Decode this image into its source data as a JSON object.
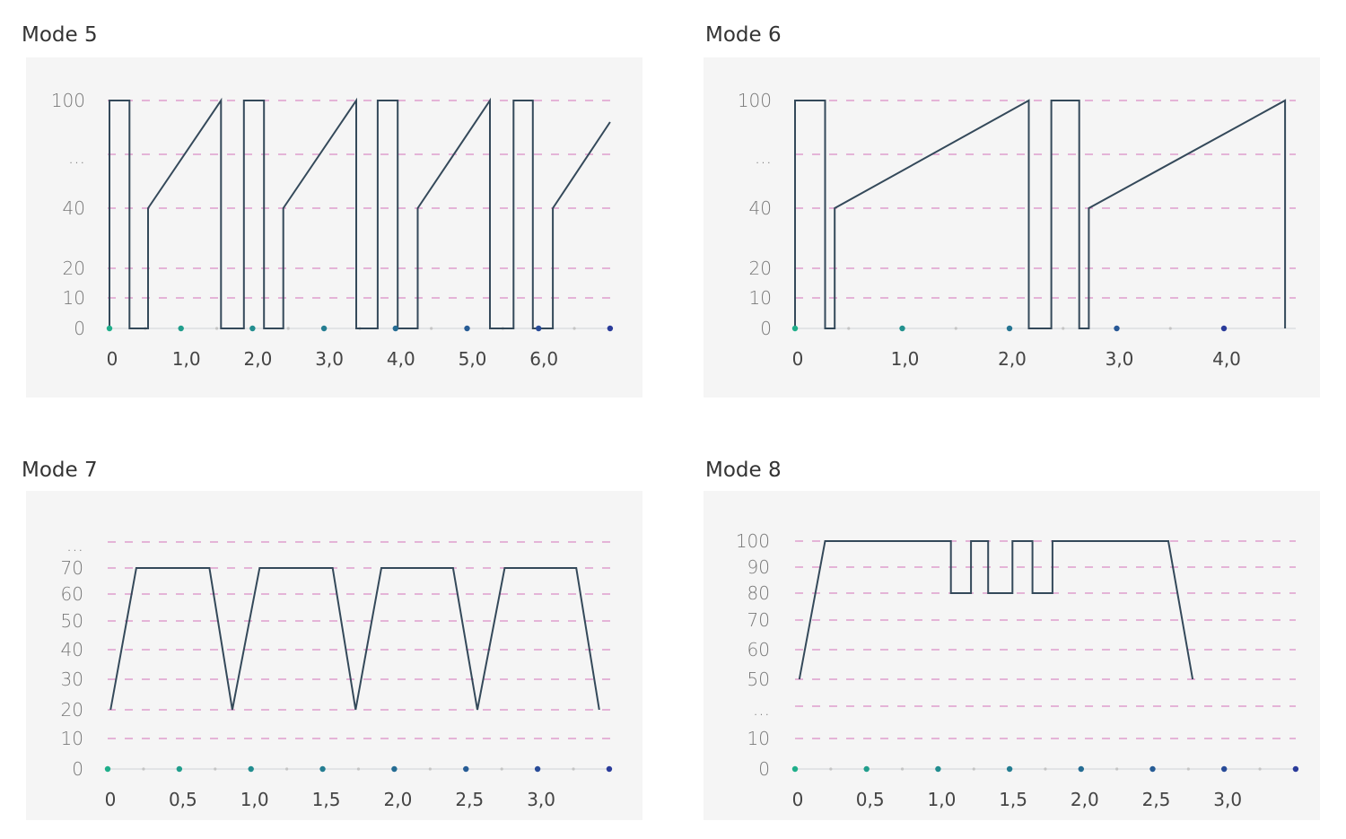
{
  "colors": {
    "panel": "#f5f5f5",
    "line": "#34495a",
    "grid": "#d67bbd",
    "axis": "#cfd3d8",
    "dot_start": "#1fae8a",
    "dot_end": "#2a3b9a",
    "minor_dot": "#c4c4c4"
  },
  "chart_data": [
    {
      "type": "line",
      "title": "Mode 5",
      "y_ticks": [
        "100",
        "...",
        "40",
        "20",
        "10",
        "0"
      ],
      "y_tick_values": [
        100,
        null,
        40,
        20,
        10,
        0
      ],
      "x_ticks": [
        "0",
        "1,0",
        "2,0",
        "3,0",
        "4,0",
        "5,0",
        "6,0"
      ],
      "x_tick_values": [
        0,
        1,
        2,
        3,
        4,
        5,
        6
      ],
      "x_axis_markers": [
        0,
        1,
        2,
        3,
        4,
        5,
        6,
        7
      ],
      "grid": true,
      "x": [
        0,
        0,
        0.28,
        0.28,
        0.54,
        0.54,
        1.56,
        1.56,
        1.88,
        1.88,
        2.16,
        2.16,
        2.43,
        2.43,
        3.45,
        3.45,
        3.75,
        3.75,
        4.03,
        4.03,
        4.31,
        4.31,
        5.32,
        5.32,
        5.65,
        5.65,
        5.92,
        5.92,
        6.2,
        6.2,
        7.0
      ],
      "y": [
        0,
        100,
        100,
        0,
        0,
        40,
        100,
        0,
        0,
        100,
        100,
        0,
        0,
        40,
        100,
        0,
        0,
        100,
        100,
        0,
        0,
        40,
        100,
        0,
        0,
        100,
        100,
        0,
        0,
        40,
        88
      ]
    },
    {
      "type": "line",
      "title": "Mode 6",
      "y_ticks": [
        "100",
        "...",
        "40",
        "20",
        "10",
        "0"
      ],
      "y_tick_values": [
        100,
        null,
        40,
        20,
        10,
        0
      ],
      "x_ticks": [
        "0",
        "1,0",
        "2,0",
        "3,0",
        "4,0"
      ],
      "x_tick_values": [
        0,
        1,
        2,
        3,
        4
      ],
      "x_axis_markers": [
        0,
        1,
        2,
        3,
        4
      ],
      "grid": true,
      "x": [
        0,
        0,
        0.28,
        0.28,
        0.37,
        0.37,
        2.18,
        2.18,
        2.39,
        2.39,
        2.65,
        2.65,
        2.74,
        2.74,
        4.57,
        4.57
      ],
      "y": [
        0,
        100,
        100,
        0,
        0,
        40,
        100,
        0,
        0,
        100,
        100,
        0,
        0,
        40,
        100,
        0
      ]
    },
    {
      "type": "line",
      "title": "Mode 7",
      "y_ticks": [
        "...",
        "70",
        "60",
        "50",
        "40",
        "30",
        "20",
        "10",
        "0"
      ],
      "y_tick_values": [
        null,
        70,
        60,
        50,
        40,
        30,
        20,
        10,
        0
      ],
      "x_ticks": [
        "0",
        "0,5",
        "1,0",
        "1,5",
        "2,0",
        "2,5",
        "3,0"
      ],
      "x_tick_values": [
        0,
        0.5,
        1,
        1.5,
        2,
        2.5,
        3
      ],
      "x_axis_markers": [
        0,
        0.5,
        1,
        1.5,
        2,
        2.5,
        3,
        3.5
      ],
      "grid": true,
      "x": [
        0.02,
        0.2,
        0.71,
        0.87,
        1.06,
        1.57,
        1.73,
        1.91,
        2.41,
        2.58,
        2.77,
        3.27,
        3.43
      ],
      "y": [
        20,
        70,
        70,
        20,
        70,
        70,
        20,
        70,
        70,
        20,
        70,
        70,
        20
      ]
    },
    {
      "type": "line",
      "title": "Mode 8",
      "y_ticks": [
        "100",
        "90",
        "80",
        "70",
        "60",
        "50",
        "...",
        "10",
        "0"
      ],
      "y_tick_values": [
        100,
        90,
        80,
        70,
        60,
        50,
        null,
        10,
        0
      ],
      "x_ticks": [
        "0",
        "0,5",
        "1,0",
        "1,5",
        "2,0",
        "2,5",
        "3,0"
      ],
      "x_tick_values": [
        0,
        0.5,
        1,
        1.5,
        2,
        2.5,
        3
      ],
      "x_axis_markers": [
        0,
        0.5,
        1,
        1.5,
        2,
        2.5,
        3,
        3.5
      ],
      "grid": true,
      "x": [
        0.03,
        0.21,
        1.09,
        1.09,
        1.23,
        1.23,
        1.35,
        1.35,
        1.52,
        1.52,
        1.66,
        1.66,
        1.8,
        1.8,
        2.61,
        2.78
      ],
      "y": [
        50,
        100,
        100,
        80,
        80,
        100,
        100,
        80,
        80,
        100,
        100,
        80,
        80,
        100,
        100,
        50
      ]
    }
  ]
}
